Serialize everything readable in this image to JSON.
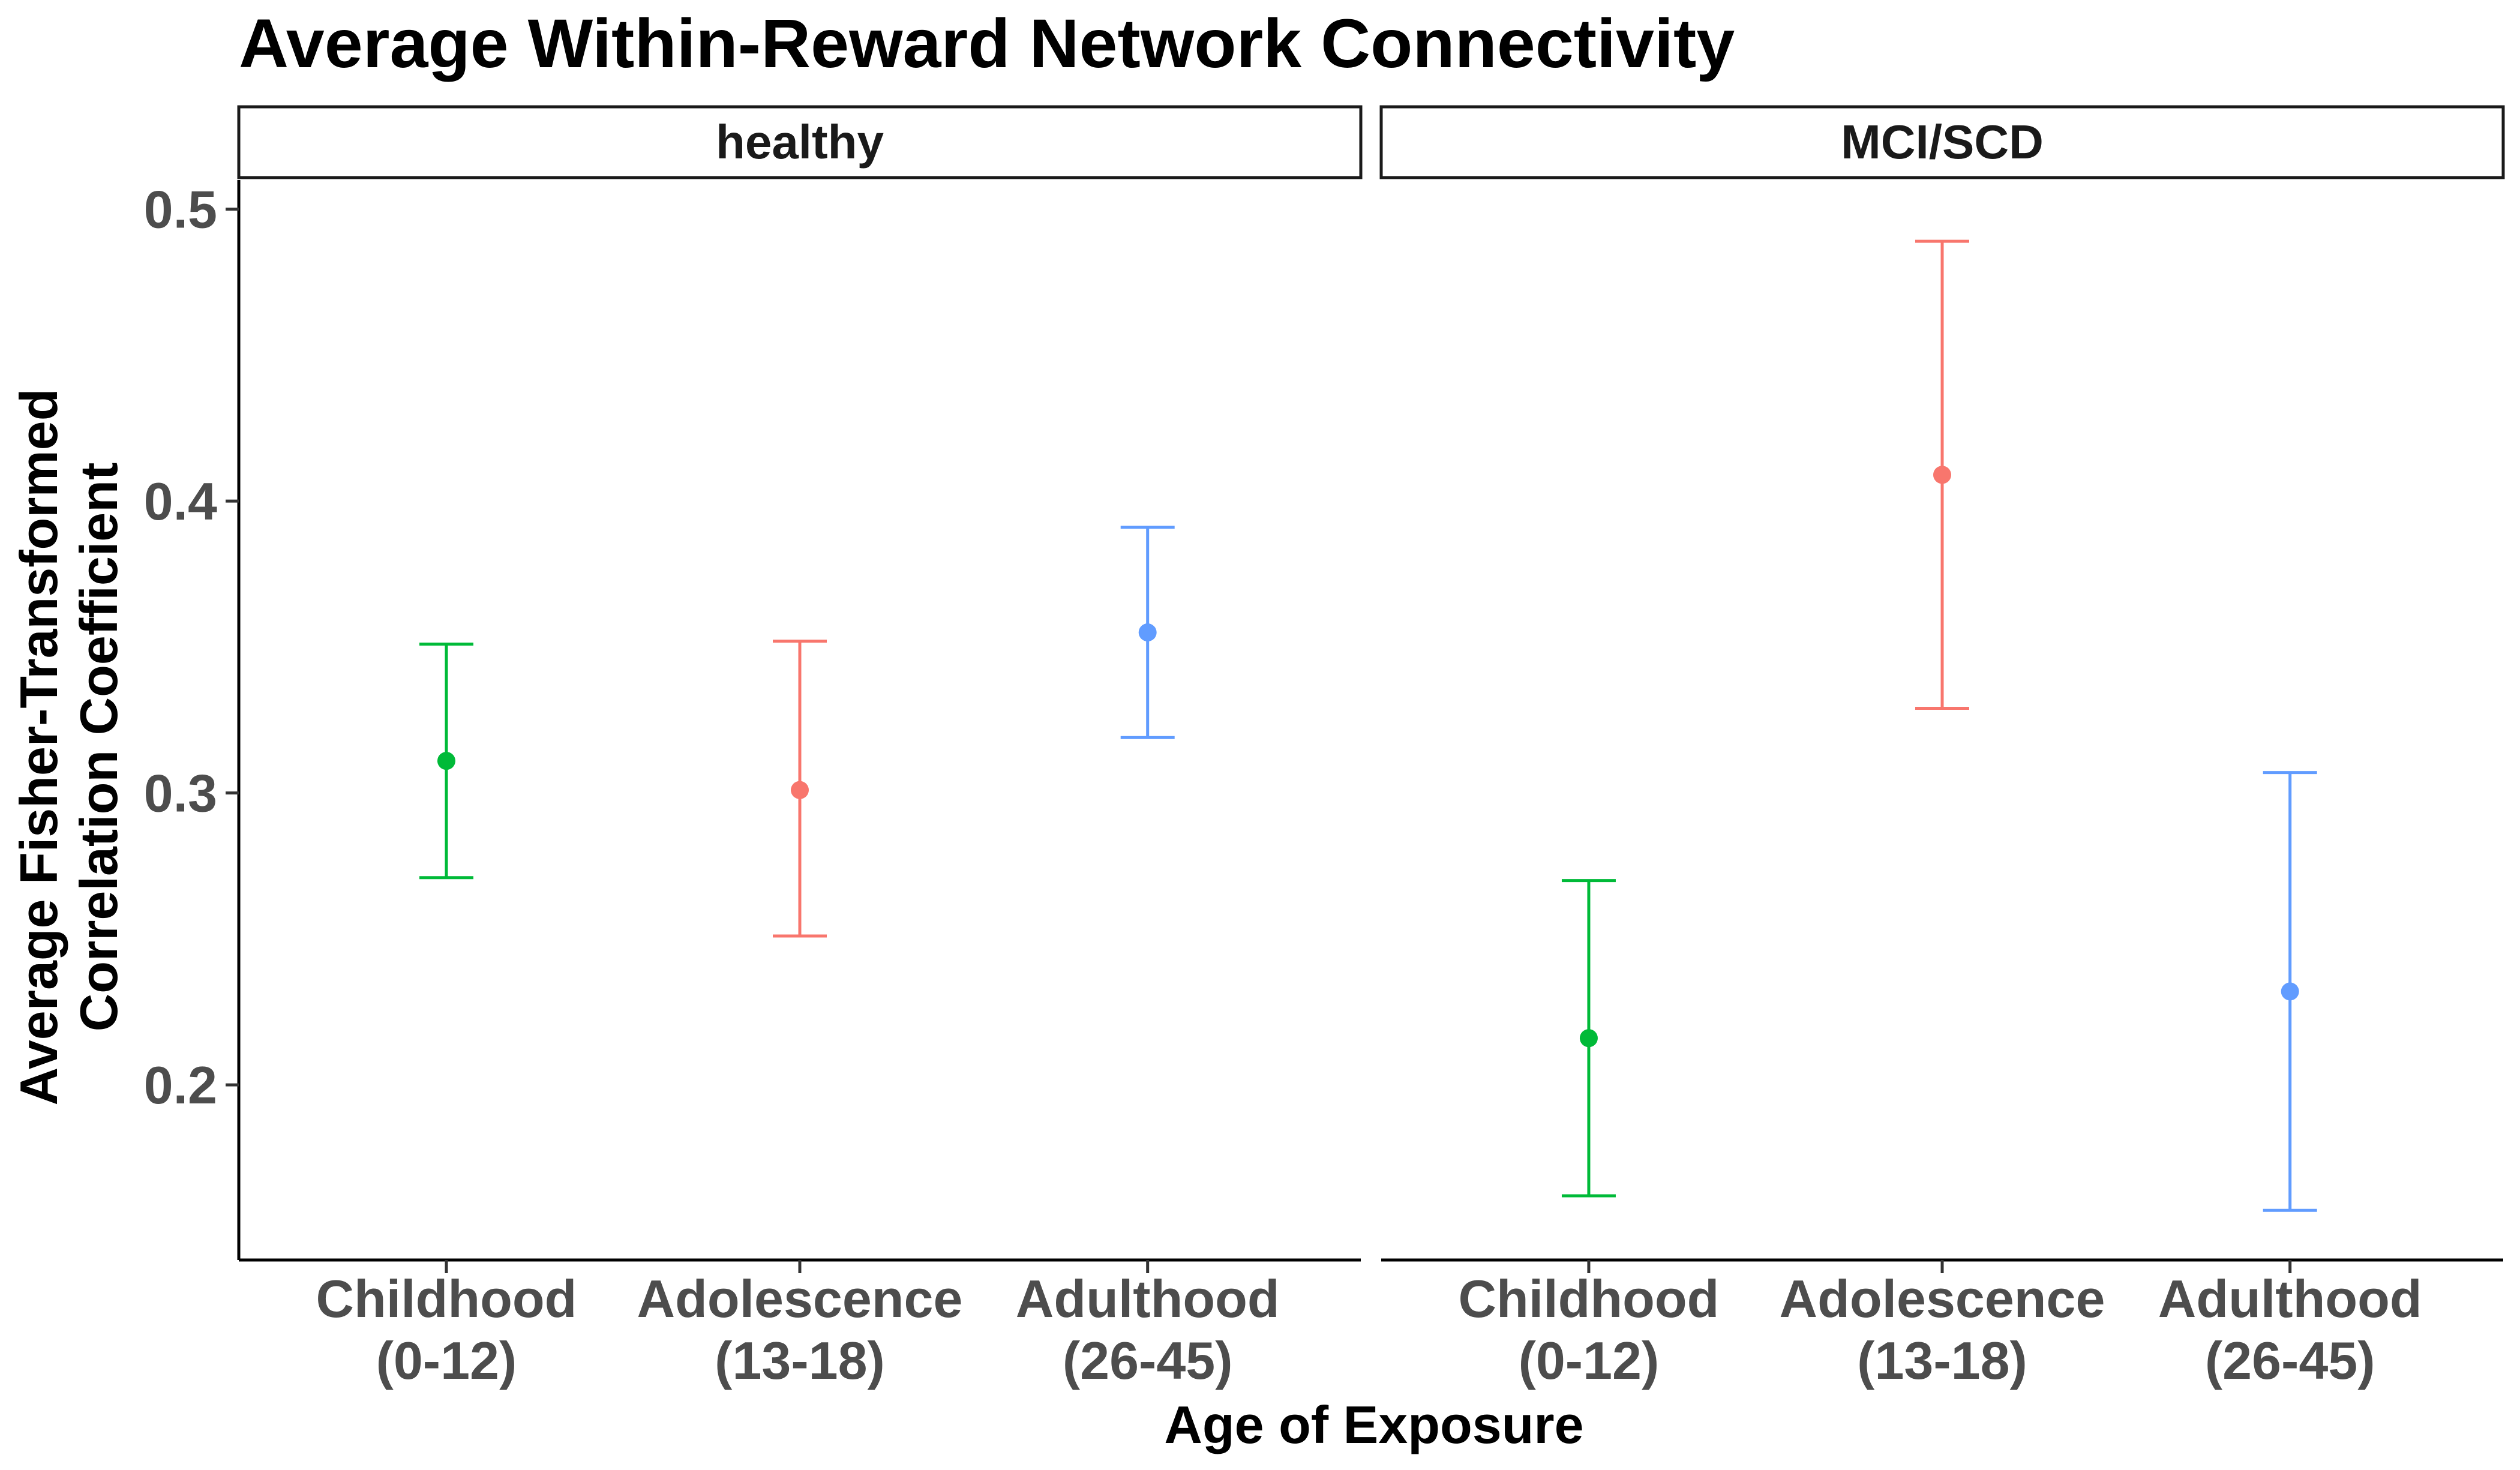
{
  "chart_data": {
    "type": "errorbar",
    "title": "Average Within-Reward Network Connectivity",
    "xlabel": "Age of Exposure",
    "ylabel": [
      "Average Fisher-Transformed",
      "Correlation Coefficient"
    ],
    "ylim": [
      0.14,
      0.51
    ],
    "yticks": [
      "0.2",
      "0.3",
      "0.4",
      "0.5"
    ],
    "grid": false,
    "legend": "none",
    "categories": [
      {
        "line1": "Childhood",
        "line2": "(0-12)",
        "color": "#00BA38"
      },
      {
        "line1": "Adolescence",
        "line2": "(13-18)",
        "color": "#F8766D"
      },
      {
        "line1": "Adulthood",
        "line2": "(26-45)",
        "color": "#619CFF"
      }
    ],
    "panels": [
      {
        "label": "healthy",
        "points": [
          {
            "category": "Childhood (0-12)",
            "mean": 0.311,
            "lower": 0.271,
            "upper": 0.351
          },
          {
            "category": "Adolescence (13-18)",
            "mean": 0.301,
            "lower": 0.251,
            "upper": 0.352
          },
          {
            "category": "Adulthood (26-45)",
            "mean": 0.355,
            "lower": 0.319,
            "upper": 0.391
          }
        ]
      },
      {
        "label": "MCI/SCD",
        "points": [
          {
            "category": "Childhood (0-12)",
            "mean": 0.216,
            "lower": 0.162,
            "upper": 0.27
          },
          {
            "category": "Adolescence (13-18)",
            "mean": 0.409,
            "lower": 0.329,
            "upper": 0.489
          },
          {
            "category": "Adulthood (26-45)",
            "mean": 0.232,
            "lower": 0.157,
            "upper": 0.307
          }
        ]
      }
    ]
  }
}
